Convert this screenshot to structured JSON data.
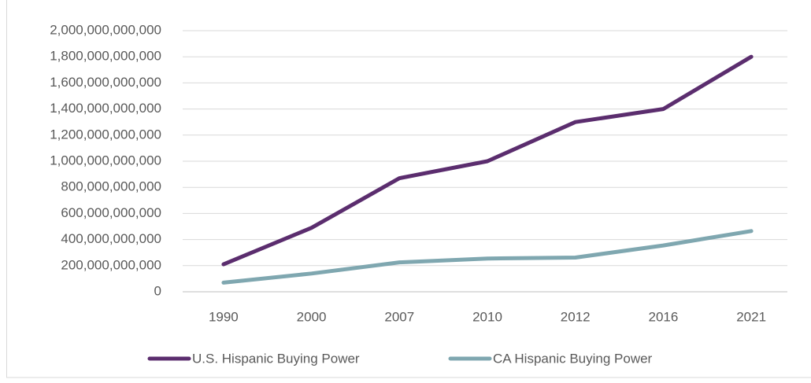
{
  "chart_data": {
    "type": "line",
    "categories": [
      "1990",
      "2000",
      "2007",
      "2010",
      "2012",
      "2016",
      "2021"
    ],
    "series": [
      {
        "name": "U.S. Hispanic Buying Power",
        "color": "#5b2d6e",
        "values": [
          210000000000,
          490000000000,
          870000000000,
          1000000000000,
          1300000000000,
          1400000000000,
          1800000000000
        ]
      },
      {
        "name": "CA Hispanic Buying Power",
        "color": "#7fa7b0",
        "values": [
          70000000000,
          140000000000,
          225000000000,
          255000000000,
          262000000000,
          355000000000,
          465000000000
        ]
      }
    ],
    "ylim": [
      0,
      2000000000000
    ],
    "yticks": [
      0,
      {
        "value": 200000000000,
        "label": "200,000,000,000"
      },
      {
        "value": 400000000000,
        "label": "400,000,000,000"
      },
      {
        "value": 600000000000,
        "label": "600,000,000,000"
      },
      {
        "value": 800000000000,
        "label": "800,000,000,000"
      },
      {
        "value": 1000000000000,
        "label": "1,000,000,000,000"
      },
      {
        "value": 1200000000000,
        "label": "1,200,000,000,000"
      },
      {
        "value": 1400000000000,
        "label": "1,400,000,000,000"
      },
      {
        "value": 1600000000000,
        "label": "1,600,000,000,000"
      },
      {
        "value": 1800000000000,
        "label": "1,800,000,000,000"
      },
      {
        "value": 2000000000000,
        "label": "2,000,000,000,000"
      }
    ],
    "grid": true,
    "legend": "bottom"
  }
}
